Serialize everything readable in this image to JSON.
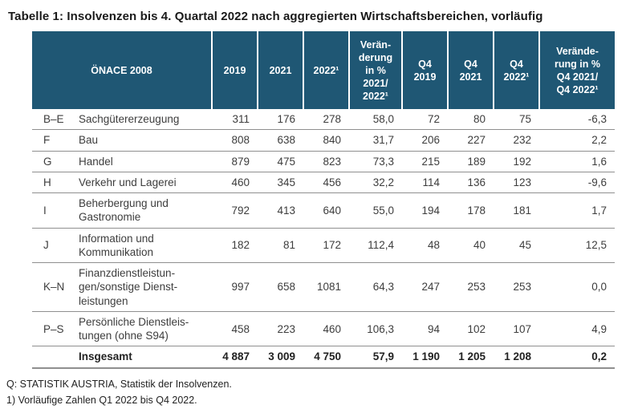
{
  "title": "Tabelle 1: Insolvenzen bis 4. Quartal 2022 nach aggregierten Wirtschaftsbereichen, vorläufig",
  "colors": {
    "header_bg": "#1F5774",
    "header_text": "#FFFFFF",
    "body_text": "#3D3D3D",
    "row_border": "#8F8F8F"
  },
  "table": {
    "header": {
      "col_onace": "ÖNACE 2008",
      "col_2019": "2019",
      "col_2021": "2021",
      "col_2022": "2022¹",
      "col_change": "Verän-\nderung\nin %\n2021/\n2022¹",
      "col_q4_2019": "Q4\n2019",
      "col_q4_2021": "Q4\n2021",
      "col_q4_2022": "Q4\n2022¹",
      "col_q4_change": "Verände-\nrung in %\nQ4 2021/\nQ4 2022¹"
    },
    "rows": [
      {
        "code": "B–E",
        "name": "Sachgütererzeugung",
        "values": [
          "311",
          "176",
          "278",
          "58,0",
          "72",
          "80",
          "75",
          "-6,3"
        ]
      },
      {
        "code": "F",
        "name": "Bau",
        "values": [
          "808",
          "638",
          "840",
          "31,7",
          "206",
          "227",
          "232",
          "2,2"
        ]
      },
      {
        "code": "G",
        "name": "Handel",
        "values": [
          "879",
          "475",
          "823",
          "73,3",
          "215",
          "189",
          "192",
          "1,6"
        ]
      },
      {
        "code": "H",
        "name": "Verkehr und Lagerei",
        "values": [
          "460",
          "345",
          "456",
          "32,2",
          "114",
          "136",
          "123",
          "-9,6"
        ]
      },
      {
        "code": "I",
        "name": "Beherbergung und\nGastronomie",
        "values": [
          "792",
          "413",
          "640",
          "55,0",
          "194",
          "178",
          "181",
          "1,7"
        ]
      },
      {
        "code": "J",
        "name": "Information und\nKommunikation",
        "values": [
          "182",
          "81",
          "172",
          "112,4",
          "48",
          "40",
          "45",
          "12,5"
        ]
      },
      {
        "code": "K–N",
        "name": "Finanzdienstleistun-\ngen/sonstige Dienst-\nleistungen",
        "values": [
          "997",
          "658",
          "1081",
          "64,3",
          "247",
          "253",
          "253",
          "0,0"
        ]
      },
      {
        "code": "P–S",
        "name": "Persönliche Dienstleis-\ntungen (ohne S94)",
        "values": [
          "458",
          "223",
          "460",
          "106,3",
          "94",
          "102",
          "107",
          "4,9"
        ]
      }
    ],
    "total": {
      "code": "",
      "name": "Insgesamt",
      "values": [
        "4 887",
        "3 009",
        "4 750",
        "57,9",
        "1 190",
        "1 205",
        "1 208",
        "0,2"
      ]
    }
  },
  "footnotes": [
    "Q: STATISTIK AUSTRIA, Statistik der Insolvenzen.",
    "1) Vorläufige Zahlen Q1 2022 bis Q4 2022."
  ]
}
